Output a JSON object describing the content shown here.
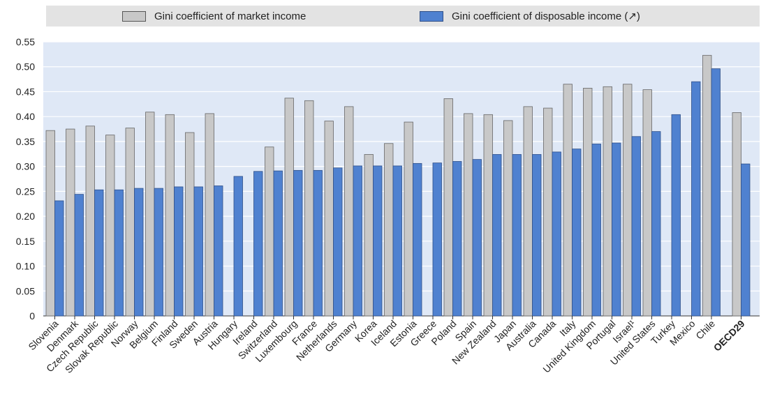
{
  "chart_data": {
    "type": "bar",
    "title": "",
    "xlabel": "",
    "ylabel": "",
    "ylim": [
      0,
      0.55
    ],
    "y_ticks": [
      "0",
      "0.05",
      "0.10",
      "0.15",
      "0.20",
      "0.25",
      "0.30",
      "0.35",
      "0.40",
      "0.45",
      "0.50",
      "0.55"
    ],
    "legend_position": "top",
    "grid": true,
    "categories": [
      "Slovenia",
      "Denmark",
      "Czech Republic",
      "Slovak Republic",
      "Norway",
      "Belgium",
      "Finland",
      "Sweden",
      "Austria",
      "Hungary",
      "Ireland",
      "Switzerland",
      "Luxembourg",
      "France",
      "Netherlands",
      "Germany",
      "Korea",
      "Iceland",
      "Estonia",
      "Greece",
      "Poland",
      "Spain",
      "New Zealand",
      "Japan",
      "Australia",
      "Canada",
      "Italy",
      "United Kingdom",
      "Portugal",
      "Israel¹",
      "United States",
      "Turkey",
      "Mexico",
      "Chile",
      "OECD29"
    ],
    "series": [
      {
        "name": "Gini coefficient of market income",
        "color": "#c8c8c8",
        "values": [
          0.372,
          0.375,
          0.381,
          0.363,
          0.377,
          0.409,
          0.404,
          0.368,
          0.406,
          null,
          null,
          0.339,
          0.437,
          0.432,
          0.391,
          0.42,
          0.324,
          0.346,
          0.389,
          null,
          0.436,
          0.406,
          0.404,
          0.392,
          0.42,
          0.417,
          0.465,
          0.457,
          0.46,
          0.465,
          0.454,
          null,
          null,
          0.523,
          0.408
        ]
      },
      {
        "name": "Gini coefficient of disposable income (↗)",
        "color": "#4f81d0",
        "values": [
          0.231,
          0.244,
          0.253,
          0.253,
          0.256,
          0.256,
          0.259,
          0.259,
          0.261,
          0.28,
          0.29,
          0.291,
          0.292,
          0.292,
          0.297,
          0.301,
          0.301,
          0.301,
          0.306,
          0.307,
          0.31,
          0.314,
          0.324,
          0.324,
          0.324,
          0.329,
          0.335,
          0.345,
          0.347,
          0.36,
          0.37,
          0.404,
          0.47,
          0.496,
          0.305
        ]
      }
    ]
  }
}
